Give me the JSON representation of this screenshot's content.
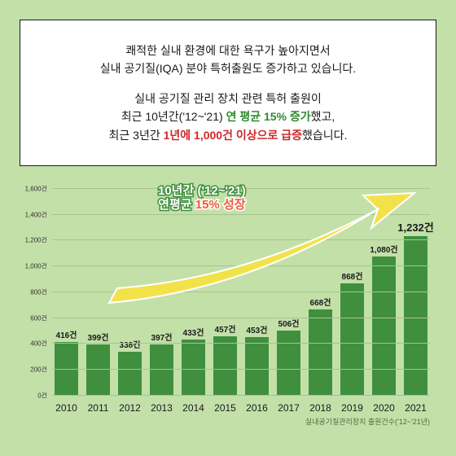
{
  "textbox": {
    "p1a": "쾌적한 실내 환경에 대한 욕구가 높아지면서",
    "p1b": "실내 공기질(IQA) 분야 특허출원도 증가하고 있습니다.",
    "p2a": "실내 공기질 관리 장치 관련 특허 출원이",
    "p2b_pre": "최근 10년간('12~'21) ",
    "p2b_hl": "연 평균 15% 증가",
    "p2b_post": "했고,",
    "p2c_pre": "최근 3년간 ",
    "p2c_hl": "1년에 1,000건 이상으로 급증",
    "p2c_post": "했습니다."
  },
  "chart": {
    "type": "bar",
    "ymax": 1600,
    "ytick_step": 200,
    "yticks": [
      "0건",
      "200건",
      "400건",
      "600건",
      "800건",
      "1,000건",
      "1,200건",
      "1,400건",
      "1,600건"
    ],
    "years": [
      "2010",
      "2011",
      "2012",
      "2013",
      "2014",
      "2015",
      "2016",
      "2017",
      "2018",
      "2019",
      "2020",
      "2021"
    ],
    "values": [
      416,
      399,
      338,
      397,
      433,
      457,
      453,
      506,
      668,
      868,
      1080,
      1232
    ],
    "value_labels": [
      "416건",
      "399건",
      "338건",
      "397건",
      "433건",
      "457건",
      "453건",
      "506건",
      "668건",
      "868건",
      "1,080건",
      "1,232건"
    ],
    "bar_color": "#3f8f3f",
    "grid_color": "#a8c48e",
    "background": "#c3e0a9",
    "caption": "실내공기질관리장치 출원건수('12~'21년)",
    "annot_line1": "10년간 ('12~'21)",
    "annot_line2a": "연평균 ",
    "annot_line2b": "15% 성장",
    "arrow_color": "#f2e24a",
    "arrow_stroke": "#ffffff"
  }
}
